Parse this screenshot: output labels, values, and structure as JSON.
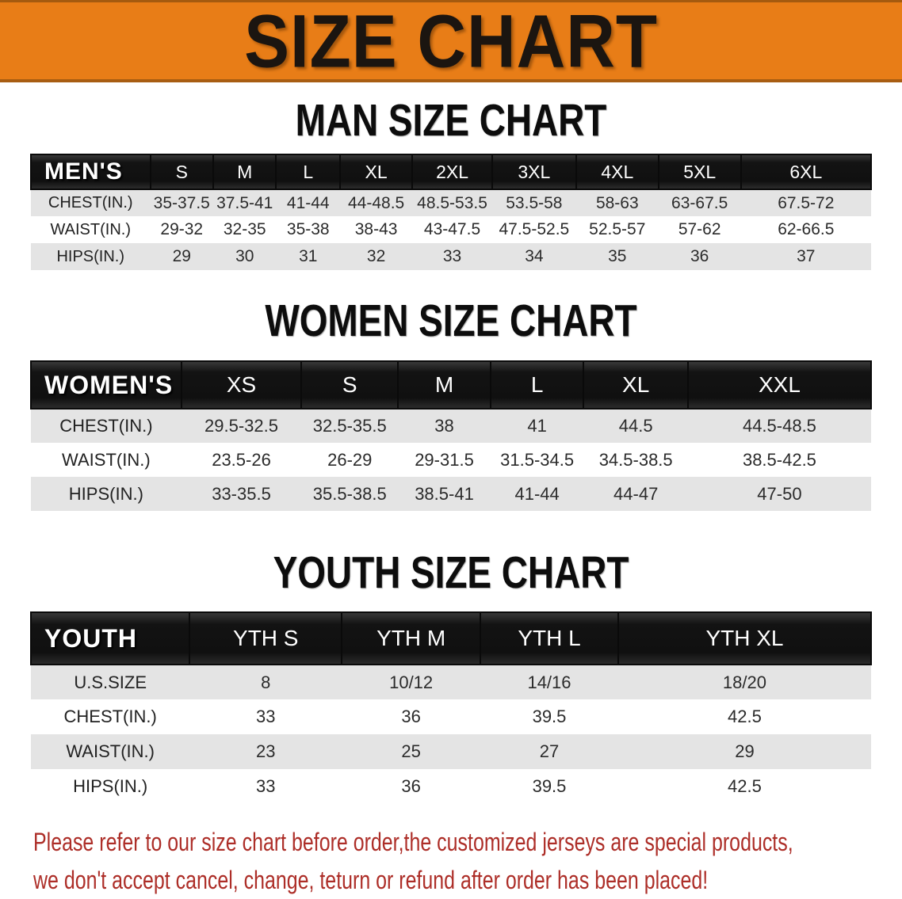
{
  "banner": {
    "title": "SIZE CHART"
  },
  "colors": {
    "banner_bg": "#E87D17",
    "header_bar_bg": "#131313",
    "header_bar_text": "#FFFFFF",
    "row_alt_bg": "#E4E4E4",
    "table_text": "#2B2B2B",
    "footer_text": "#AD2E28"
  },
  "sections": [
    {
      "heading": "MAN SIZE CHART",
      "table": {
        "label": "MEN'S",
        "columns": [
          "S",
          "M",
          "L",
          "XL",
          "2XL",
          "3XL",
          "4XL",
          "5XL",
          "6XL"
        ],
        "rows": [
          {
            "label": "CHEST(IN.)",
            "values": [
              "35-37.5",
              "37.5-41",
              "41-44",
              "44-48.5",
              "48.5-53.5",
              "53.5-58",
              "58-63",
              "63-67.5",
              "67.5-72"
            ]
          },
          {
            "label": "WAIST(IN.)",
            "values": [
              "29-32",
              "32-35",
              "35-38",
              "38-43",
              "43-47.5",
              "47.5-52.5",
              "52.5-57",
              "57-62",
              "62-66.5"
            ]
          },
          {
            "label": "HIPS(IN.)",
            "values": [
              "29",
              "30",
              "31",
              "32",
              "33",
              "34",
              "35",
              "36",
              "37"
            ]
          }
        ]
      }
    },
    {
      "heading": "WOMEN SIZE CHART",
      "table": {
        "label": "WOMEN'S",
        "columns": [
          "XS",
          "S",
          "M",
          "L",
          "XL",
          "XXL"
        ],
        "rows": [
          {
            "label": "CHEST(IN.)",
            "values": [
              "29.5-32.5",
              "32.5-35.5",
              "38",
              "41",
              "44.5",
              "44.5-48.5"
            ]
          },
          {
            "label": "WAIST(IN.)",
            "values": [
              "23.5-26",
              "26-29",
              "29-31.5",
              "31.5-34.5",
              "34.5-38.5",
              "38.5-42.5"
            ]
          },
          {
            "label": "HIPS(IN.)",
            "values": [
              "33-35.5",
              "35.5-38.5",
              "38.5-41",
              "41-44",
              "44-47",
              "47-50"
            ]
          }
        ]
      }
    },
    {
      "heading": "YOUTH SIZE CHART",
      "table": {
        "label": "YOUTH",
        "columns": [
          "YTH S",
          "YTH M",
          "YTH L",
          "YTH XL"
        ],
        "rows": [
          {
            "label": "U.S.SIZE",
            "values": [
              "8",
              "10/12",
              "14/16",
              "18/20"
            ]
          },
          {
            "label": "CHEST(IN.)",
            "values": [
              "33",
              "36",
              "39.5",
              "42.5"
            ]
          },
          {
            "label": "WAIST(IN.)",
            "values": [
              "23",
              "25",
              "27",
              "29"
            ]
          },
          {
            "label": "HIPS(IN.)",
            "values": [
              "33",
              "36",
              "39.5",
              "42.5"
            ]
          }
        ]
      }
    }
  ],
  "footer": {
    "line1": "Please refer to our size chart before order,the customized jerseys are special products,",
    "line2": "we don't accept cancel, change, teturn or refund after order has been placed!"
  }
}
